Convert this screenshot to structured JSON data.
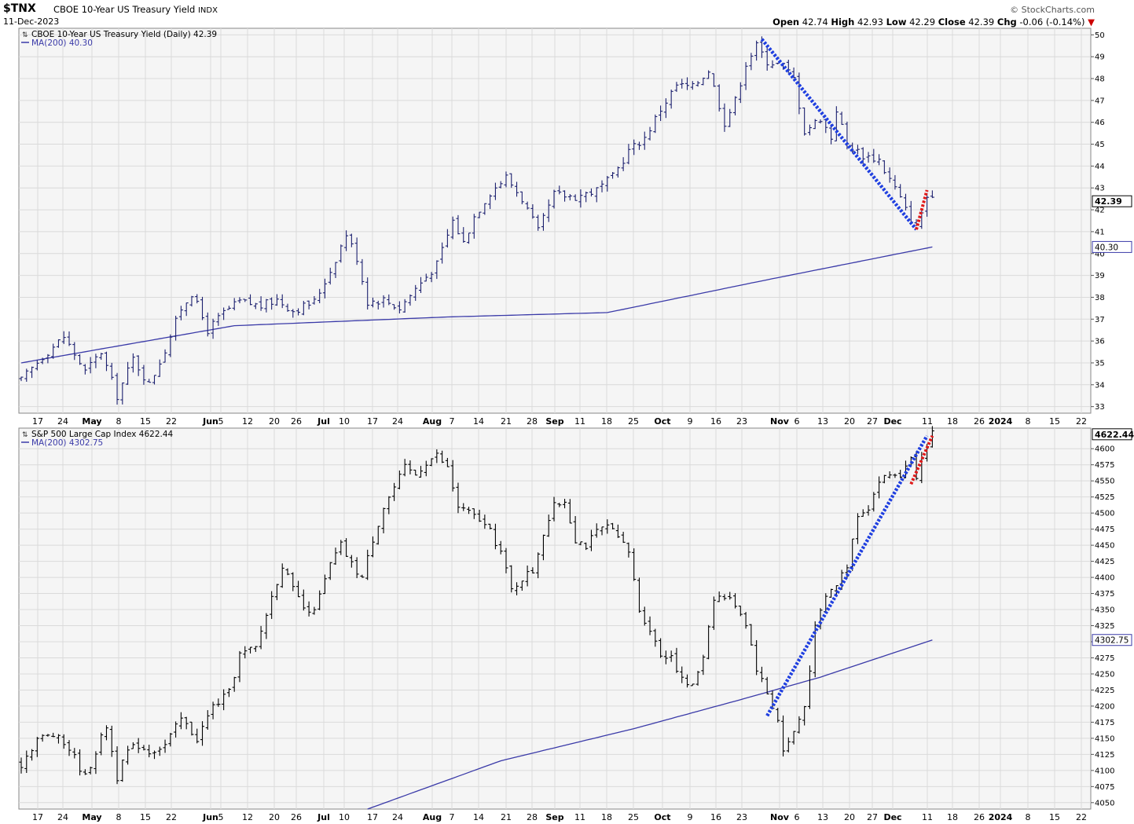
{
  "header": {
    "symbol": "$TNX",
    "name": "CBOE 10-Year US Treasury Yield",
    "exchange": "INDX",
    "date": "11-Dec-2023",
    "brand": "© StockCharts.com",
    "open_label": "Open",
    "open": "42.74",
    "high_label": "High",
    "high": "42.93",
    "low_label": "Low",
    "low": "42.29",
    "close_label": "Close",
    "close": "42.39",
    "chg_label": "Chg",
    "chg": "-0.06 (-0.14%)",
    "down_arrow": "▼"
  },
  "colors": {
    "panel_bg": "#f5f5f5",
    "yield_bars": "#1b1f6e",
    "spx_bars": "#000000",
    "ma_line": "#3a3aa8",
    "trend_blue": "#1f3fe0",
    "trend_red": "#e01818",
    "grid": "#dadada"
  },
  "x_axis_labels": [
    "17",
    "24",
    "May",
    "8",
    "15",
    "22",
    "Jun",
    "5",
    "12",
    "20",
    "26",
    "Jul",
    "10",
    "17",
    "24",
    "Aug",
    "7",
    "14",
    "21",
    "28",
    "Sep",
    "11",
    "18",
    "25",
    "Oct",
    "9",
    "16",
    "23",
    "Nov",
    "6",
    "13",
    "20",
    "27",
    "Dec",
    "11",
    "18",
    "26",
    "2024",
    "8",
    "15",
    "22"
  ],
  "chart_data": [
    {
      "type": "ohlc-bar",
      "legend_title": "CBOE 10-Year US Treasury Yield (Daily) 42.39",
      "legend_ma": "MA(200) 40.30",
      "last_value": "42.39",
      "ma_value": "40.30",
      "y_ticks": [
        33,
        34,
        35,
        36,
        37,
        38,
        39,
        40,
        41,
        42,
        43,
        44,
        45,
        46,
        47,
        48,
        49,
        50
      ],
      "ylim": [
        32.7,
        50.3
      ],
      "anchors": [
        [
          0,
          34.2
        ],
        [
          4,
          35.3
        ],
        [
          8,
          36.2
        ],
        [
          12,
          34.6
        ],
        [
          15,
          35.5
        ],
        [
          18,
          33.5
        ],
        [
          21,
          35.2
        ],
        [
          24,
          34.0
        ],
        [
          27,
          35.6
        ],
        [
          30,
          37.5
        ],
        [
          32,
          38.2
        ],
        [
          35,
          36.5
        ],
        [
          38,
          37.3
        ],
        [
          41,
          37.8
        ],
        [
          45,
          37.6
        ],
        [
          48,
          37.9
        ],
        [
          51,
          37.4
        ],
        [
          55,
          37.8
        ],
        [
          58,
          39.2
        ],
        [
          61,
          40.9
        ],
        [
          63,
          39.8
        ],
        [
          65,
          37.8
        ],
        [
          68,
          37.9
        ],
        [
          71,
          37.5
        ],
        [
          74,
          38.4
        ],
        [
          78,
          39.5
        ],
        [
          81,
          41.5
        ],
        [
          83,
          40.5
        ],
        [
          85,
          41.7
        ],
        [
          88,
          42.8
        ],
        [
          91,
          43.5
        ],
        [
          94,
          42.5
        ],
        [
          97,
          41.0
        ],
        [
          100,
          42.7
        ],
        [
          104,
          42.6
        ],
        [
          108,
          42.9
        ],
        [
          111,
          43.5
        ],
        [
          114,
          44.7
        ],
        [
          117,
          45.3
        ],
        [
          120,
          46.6
        ],
        [
          123,
          47.7
        ],
        [
          126,
          47.6
        ],
        [
          129,
          48.4
        ],
        [
          132,
          46.0
        ],
        [
          134,
          47.0
        ],
        [
          136,
          48.7
        ],
        [
          138,
          49.5
        ],
        [
          140,
          48.8
        ],
        [
          143,
          48.6
        ],
        [
          145,
          48.0
        ],
        [
          147,
          45.6
        ],
        [
          150,
          46.2
        ],
        [
          152,
          45.3
        ],
        [
          153,
          46.6
        ],
        [
          155,
          45.0
        ],
        [
          158,
          44.5
        ],
        [
          161,
          44.3
        ],
        [
          162,
          43.8
        ],
        [
          164,
          43.0
        ],
        [
          166,
          42.0
        ],
        [
          168,
          41.2
        ],
        [
          170,
          42.6
        ],
        [
          171,
          42.39
        ]
      ],
      "ma200": [
        [
          0,
          35.0
        ],
        [
          40,
          36.7
        ],
        [
          80,
          37.1
        ],
        [
          110,
          37.3
        ],
        [
          140,
          38.8
        ],
        [
          171,
          40.3
        ]
      ],
      "trendline_blue": [
        [
          139,
          49.8
        ],
        [
          168,
          41.1
        ]
      ],
      "trendline_red": [
        [
          168,
          41.1
        ],
        [
          170,
          42.9
        ]
      ]
    },
    {
      "type": "ohlc-bar",
      "legend_title": "S&P 500 Large Cap Index 4622.44",
      "legend_ma": "MA(200) 4302.75",
      "last_value": "4622.44",
      "ma_value": "4302.75",
      "y_ticks": [
        4050,
        4075,
        4100,
        4125,
        4150,
        4175,
        4200,
        4225,
        4250,
        4275,
        4300,
        4325,
        4350,
        4375,
        4400,
        4425,
        4450,
        4475,
        4500,
        4525,
        4550,
        4575,
        4600
      ],
      "ylim": [
        4040,
        4632
      ],
      "anchors": [
        [
          0,
          4110
        ],
        [
          3,
          4150
        ],
        [
          6,
          4155
        ],
        [
          9,
          4135
        ],
        [
          12,
          4090
        ],
        [
          14,
          4130
        ],
        [
          16,
          4170
        ],
        [
          18,
          4090
        ],
        [
          20,
          4130
        ],
        [
          22,
          4140
        ],
        [
          24,
          4130
        ],
        [
          27,
          4140
        ],
        [
          30,
          4180
        ],
        [
          33,
          4150
        ],
        [
          36,
          4200
        ],
        [
          39,
          4220
        ],
        [
          41,
          4280
        ],
        [
          44,
          4290
        ],
        [
          47,
          4370
        ],
        [
          49,
          4420
        ],
        [
          51,
          4380
        ],
        [
          54,
          4340
        ],
        [
          56,
          4370
        ],
        [
          58,
          4420
        ],
        [
          60,
          4450
        ],
        [
          62,
          4420
        ],
        [
          64,
          4400
        ],
        [
          66,
          4460
        ],
        [
          68,
          4510
        ],
        [
          70,
          4540
        ],
        [
          72,
          4570
        ],
        [
          74,
          4560
        ],
        [
          76,
          4580
        ],
        [
          78,
          4590
        ],
        [
          80,
          4570
        ],
        [
          82,
          4510
        ],
        [
          84,
          4500
        ],
        [
          86,
          4490
        ],
        [
          88,
          4470
        ],
        [
          90,
          4440
        ],
        [
          92,
          4380
        ],
        [
          94,
          4400
        ],
        [
          96,
          4410
        ],
        [
          98,
          4470
        ],
        [
          100,
          4510
        ],
        [
          102,
          4520
        ],
        [
          104,
          4460
        ],
        [
          106,
          4450
        ],
        [
          108,
          4470
        ],
        [
          110,
          4480
        ],
        [
          112,
          4460
        ],
        [
          114,
          4440
        ],
        [
          116,
          4350
        ],
        [
          118,
          4320
        ],
        [
          120,
          4280
        ],
        [
          122,
          4280
        ],
        [
          124,
          4240
        ],
        [
          126,
          4230
        ],
        [
          128,
          4280
        ],
        [
          130,
          4370
        ],
        [
          132,
          4370
        ],
        [
          134,
          4360
        ],
        [
          136,
          4330
        ],
        [
          138,
          4260
        ],
        [
          140,
          4220
        ],
        [
          142,
          4180
        ],
        [
          143,
          4130
        ],
        [
          145,
          4160
        ],
        [
          147,
          4200
        ],
        [
          149,
          4320
        ],
        [
          151,
          4370
        ],
        [
          153,
          4390
        ],
        [
          155,
          4420
        ],
        [
          157,
          4500
        ],
        [
          159,
          4510
        ],
        [
          161,
          4550
        ],
        [
          163,
          4560
        ],
        [
          165,
          4560
        ],
        [
          167,
          4580
        ],
        [
          168,
          4560
        ],
        [
          170,
          4600
        ],
        [
          171,
          4622.44
        ]
      ],
      "ma200": [
        [
          65,
          4040
        ],
        [
          90,
          4115
        ],
        [
          115,
          4165
        ],
        [
          135,
          4210
        ],
        [
          150,
          4245
        ],
        [
          171,
          4302.75
        ]
      ],
      "trendline_blue": [
        [
          140,
          4185
        ],
        [
          170,
          4620
        ]
      ],
      "trendline_red": [
        [
          167,
          4545
        ],
        [
          171,
          4620
        ]
      ]
    }
  ]
}
